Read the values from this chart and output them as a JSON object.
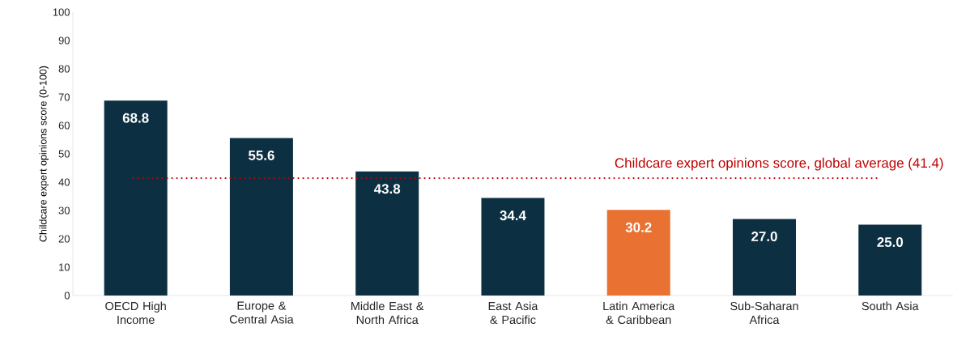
{
  "chart_data": {
    "type": "bar",
    "ylabel": "Childcare expert opinions score (0-100)",
    "categories": [
      "OECD High Income",
      "Europe & Central Asia",
      "Middle East & North Africa",
      "East Asia & Pacific",
      "Latin America & Caribbean",
      "Sub-Saharan Africa",
      "South Asia"
    ],
    "values": [
      68.8,
      55.6,
      43.8,
      34.4,
      30.2,
      27.0,
      25.0
    ],
    "value_labels": [
      "68.8",
      "55.6",
      "43.8",
      "34.4",
      "30.2",
      "27.0",
      "25.0"
    ],
    "colors": [
      "#0d2f42",
      "#0d2f42",
      "#0d2f42",
      "#0d2f42",
      "#e97132",
      "#0d2f42",
      "#0d2f42"
    ],
    "ylim": [
      0,
      100
    ],
    "yticks": [
      0,
      10,
      20,
      30,
      40,
      50,
      60,
      70,
      80,
      90,
      100
    ],
    "grid": false,
    "ref_lines": [
      {
        "axis": "y",
        "value": 41.4,
        "label": "Childcare expert opinions score, global average (41.4)",
        "color": "#c00000",
        "line_style": "dotted"
      }
    ]
  }
}
